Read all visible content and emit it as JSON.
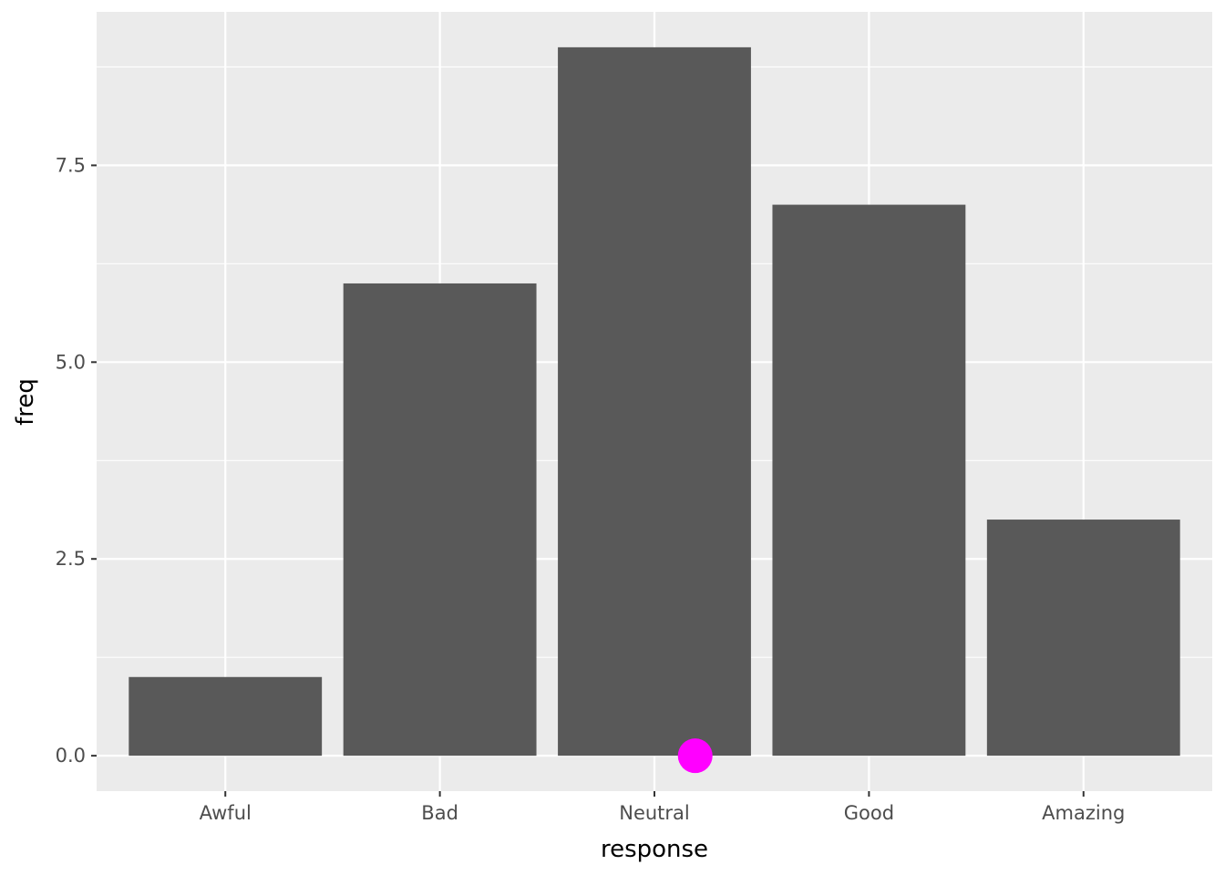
{
  "chart_data": {
    "type": "bar",
    "categories": [
      "Awful",
      "Bad",
      "Neutral",
      "Good",
      "Amazing"
    ],
    "values": [
      1,
      6,
      9,
      7,
      3
    ],
    "title": "",
    "xlabel": "response",
    "ylabel": "freq",
    "ylim": [
      -0.45,
      9.45
    ],
    "yticks": [
      0,
      2.5,
      5,
      7.5
    ],
    "ytick_labels": [
      "0.0",
      "2.5",
      "5.0",
      "7.5"
    ],
    "yminor": [
      1.25,
      3.75,
      6.25,
      8.75
    ],
    "grid": true,
    "legend": "none",
    "colors": {
      "bar": "#595959",
      "panel": "#ebebeb",
      "grid": "#ffffff",
      "highlight": "#ff00ff"
    },
    "highlight_point": {
      "category_position": 3.19,
      "y": 0
    }
  }
}
